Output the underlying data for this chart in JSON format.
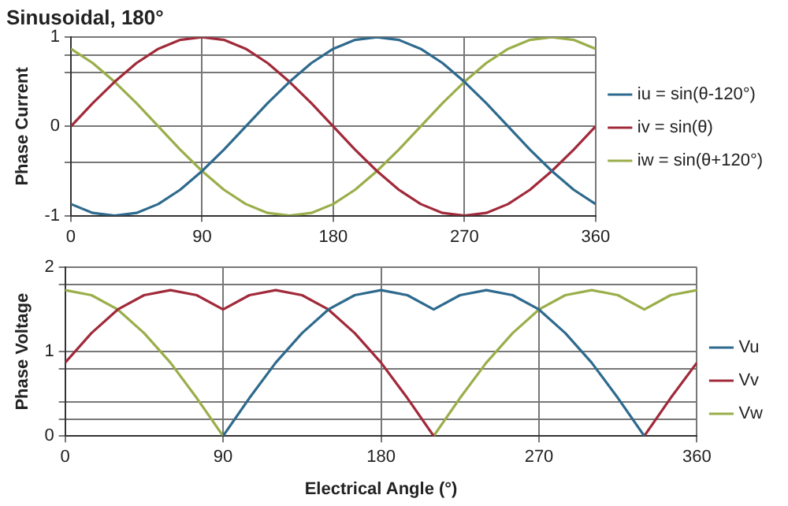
{
  "chart_data": [
    {
      "type": "line",
      "title": "Sinusoidal, 180°",
      "ylabel": "Phase Current",
      "x": [
        0,
        15,
        30,
        45,
        60,
        75,
        90,
        105,
        120,
        135,
        150,
        165,
        180,
        195,
        210,
        225,
        240,
        255,
        270,
        285,
        300,
        315,
        330,
        345,
        360
      ],
      "series": [
        {
          "name": "iu = sin(θ-120°)",
          "color": "#2e6a8e",
          "values": [
            -0.87,
            -0.97,
            -1,
            -0.97,
            -0.87,
            -0.71,
            -0.5,
            -0.26,
            0,
            0.26,
            0.5,
            0.71,
            0.87,
            0.97,
            1,
            0.97,
            0.87,
            0.71,
            0.5,
            0.26,
            0,
            -0.26,
            -0.5,
            -0.71,
            -0.87
          ]
        },
        {
          "name": "iv = sin(θ)",
          "color": "#a12a3a",
          "values": [
            0,
            0.26,
            0.5,
            0.71,
            0.87,
            0.97,
            1,
            0.97,
            0.87,
            0.71,
            0.5,
            0.26,
            0,
            -0.26,
            -0.5,
            -0.71,
            -0.87,
            -0.97,
            -1,
            -0.97,
            -0.87,
            -0.71,
            -0.5,
            -0.26,
            0
          ]
        },
        {
          "name": "iw = sin(θ+120°)",
          "color": "#9aae4a",
          "values": [
            0.87,
            0.71,
            0.5,
            0.26,
            0,
            -0.26,
            -0.5,
            -0.71,
            -0.87,
            -0.97,
            -1,
            -0.97,
            -0.87,
            -0.71,
            -0.5,
            -0.26,
            0,
            0.26,
            0.5,
            0.71,
            0.87,
            0.97,
            1,
            0.97,
            0.87
          ]
        }
      ],
      "xlim": [
        0,
        360
      ],
      "xticks": [
        0,
        90,
        180,
        270,
        360
      ],
      "ylim": [
        -1,
        1
      ],
      "yticks": [
        -1,
        {
          "value": -0.4,
          "label": null
        },
        0,
        {
          "value": 0.6,
          "label": null
        },
        {
          "value": 0.8,
          "label": null
        },
        1
      ],
      "grid": true,
      "legend": "right"
    },
    {
      "type": "line",
      "xlabel": "Electrical Angle (°)",
      "ylabel": "Phase Voltage",
      "x": [
        0,
        15,
        30,
        45,
        60,
        75,
        90,
        105,
        120,
        135,
        150,
        165,
        180,
        195,
        210,
        225,
        240,
        255,
        270,
        285,
        300,
        315,
        330,
        345,
        360
      ],
      "series": [
        {
          "name": "Vu",
          "color": "#2e6a8e",
          "values": [
            null,
            null,
            null,
            null,
            null,
            null,
            0,
            0.45,
            0.87,
            1.22,
            1.5,
            1.67,
            1.73,
            1.67,
            1.5,
            1.67,
            1.73,
            1.67,
            1.5,
            1.22,
            0.87,
            0.45,
            0,
            null,
            null
          ]
        },
        {
          "name": "Vv",
          "color": "#a12a3a",
          "values": [
            0.87,
            1.22,
            1.5,
            1.67,
            1.73,
            1.67,
            1.5,
            1.67,
            1.73,
            1.67,
            1.5,
            1.22,
            0.87,
            0.45,
            0,
            null,
            null,
            null,
            null,
            null,
            null,
            null,
            0,
            0.45,
            0.87
          ]
        },
        {
          "name": "Vw",
          "color": "#9aae4a",
          "values": [
            1.73,
            1.67,
            1.5,
            1.22,
            0.87,
            0.45,
            0,
            null,
            null,
            null,
            null,
            null,
            null,
            null,
            0,
            0.45,
            0.87,
            1.22,
            1.5,
            1.67,
            1.73,
            1.67,
            1.5,
            1.67,
            1.73
          ]
        }
      ],
      "xlim": [
        0,
        360
      ],
      "xticks": [
        0,
        90,
        180,
        270,
        360
      ],
      "ylim": [
        0,
        2
      ],
      "yticks": [
        0,
        {
          "value": 0.2,
          "label": null
        },
        {
          "value": 0.4,
          "label": null
        },
        {
          "value": 0.8,
          "label": null
        },
        1,
        {
          "value": 1.8,
          "label": null
        },
        2
      ],
      "grid": true,
      "legend": "right"
    }
  ]
}
